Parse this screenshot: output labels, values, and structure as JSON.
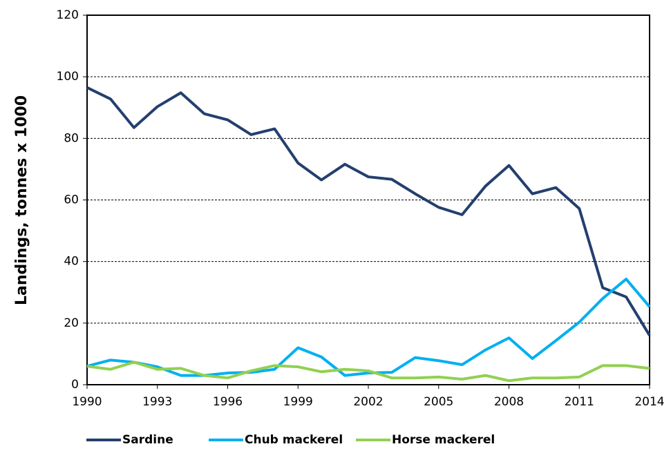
{
  "chart_data": {
    "type": "line",
    "y_label": "Landings, tonnes x 1000",
    "x": [
      1990,
      1991,
      1992,
      1993,
      1994,
      1995,
      1996,
      1997,
      1998,
      1999,
      2000,
      2001,
      2002,
      2003,
      2004,
      2005,
      2006,
      2007,
      2008,
      2009,
      2010,
      2011,
      2012,
      2013,
      2014
    ],
    "series": [
      {
        "name": "Sardine",
        "color": "#243f6f",
        "values": [
          96.5,
          92.8,
          83.5,
          90.3,
          94.8,
          88,
          86,
          81.2,
          83.1,
          72,
          66.5,
          71.6,
          67.5,
          66.7,
          62,
          57.6,
          55.2,
          64.5,
          71.2,
          62,
          64,
          57.2,
          31.5,
          28.5,
          16
        ]
      },
      {
        "name": "Chub mackerel",
        "color": "#00b0f0",
        "values": [
          6,
          8,
          7.3,
          5.8,
          3,
          3,
          3.8,
          4,
          5,
          12,
          9,
          3,
          3.8,
          4,
          8.8,
          7.8,
          6.5,
          11.3,
          15.2,
          8.5,
          14.3,
          20.3,
          28,
          34.3,
          25.3
        ]
      },
      {
        "name": "Horse mackerel",
        "color": "#92d050",
        "values": [
          6,
          5,
          7.3,
          5,
          5.3,
          3,
          2.2,
          4.5,
          6.2,
          5.8,
          4.2,
          5,
          4.5,
          2.2,
          2.2,
          2.5,
          1.8,
          3,
          1.3,
          2.2,
          2.2,
          2.5,
          6.2,
          6.2,
          5.3
        ]
      }
    ],
    "xlim": [
      1990,
      2014
    ],
    "xticks": [
      1990,
      1993,
      1996,
      1999,
      2002,
      2005,
      2008,
      2011,
      2014
    ],
    "ylim": [
      0,
      120
    ],
    "yticks": [
      0,
      20,
      40,
      60,
      80,
      100,
      120
    ],
    "grid": true,
    "legend": "bottom"
  }
}
